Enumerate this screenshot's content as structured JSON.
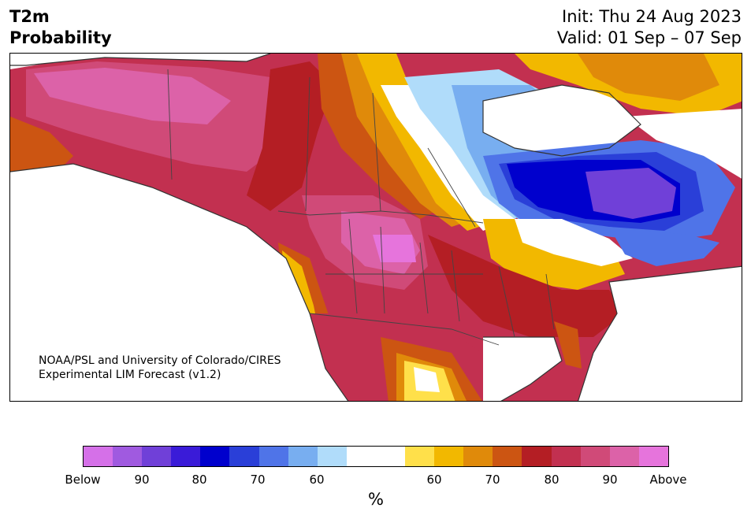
{
  "header": {
    "title_line1": "T2m",
    "title_line2": "Probability",
    "init": "Init: Thu 24 Aug 2023",
    "valid": "Valid: 01 Sep – 07 Sep"
  },
  "credit": {
    "line1": "NOAA/PSL and University of Colorado/CIRES",
    "line2": "Experimental LIM Forecast (v1.2)"
  },
  "colorbar": {
    "colors": [
      "#d570e8",
      "#a05ae0",
      "#7040d8",
      "#3a1bd8",
      "#0000cd",
      "#2a3fd8",
      "#4f74e8",
      "#78aef0",
      "#b0dcfa",
      "#ffffff",
      "#ffffff",
      "#ffe04a",
      "#f2b800",
      "#e08a0a",
      "#cc5512",
      "#b41e24",
      "#c23050",
      "#d04a78",
      "#dc62a8",
      "#e674dc"
    ],
    "labels": [
      "Below",
      "90",
      "80",
      "70",
      "60",
      "60",
      "70",
      "80",
      "90",
      "Above"
    ],
    "unit": "%"
  },
  "map": {
    "region": "North America",
    "feature_colors": {
      "coastline": "#333333",
      "state_borders": "#444444",
      "lakes": "#ffffff"
    }
  }
}
